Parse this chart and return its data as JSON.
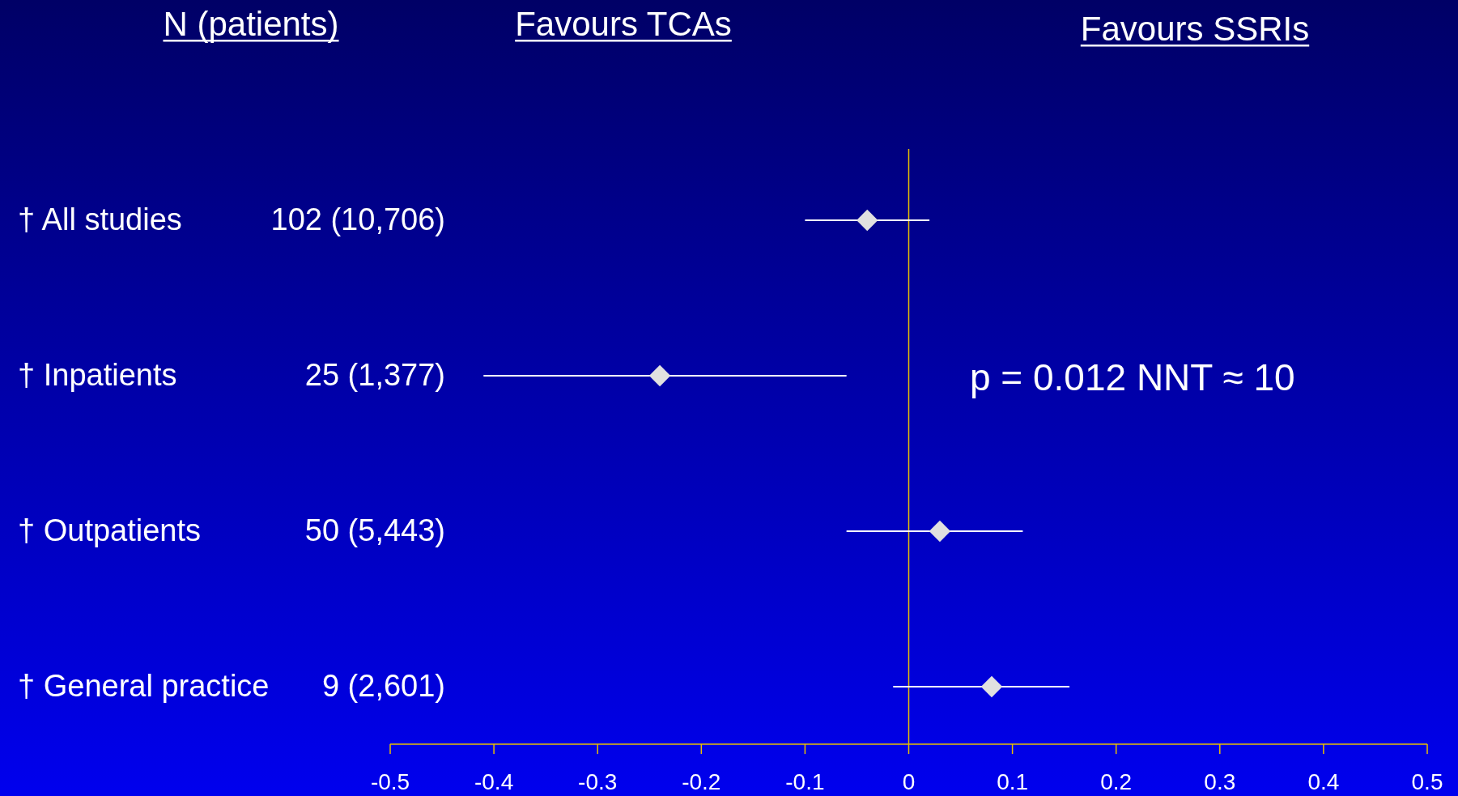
{
  "chart_data": {
    "type": "scatter",
    "orientation": "horizontal",
    "categories": [
      "† All studies",
      "† Inpatients",
      "† Outpatients",
      "† General practice"
    ],
    "values": [
      -0.04,
      -0.24,
      0.03,
      0.08
    ],
    "errors": [
      [
        -0.1,
        0.02
      ],
      [
        -0.41,
        -0.06
      ],
      [
        -0.06,
        0.11
      ],
      [
        -0.015,
        0.155
      ]
    ],
    "color": "#e0e0e0",
    "marker": "diamond",
    "xlim": [
      -0.5,
      0.5
    ],
    "xticks": [
      -0.5,
      -0.4,
      -0.3,
      -0.2,
      -0.1,
      0,
      0.1,
      0.2,
      0.3,
      0.4,
      0.5
    ],
    "ref_lines": [
      {
        "axis": "x",
        "value": 0,
        "color": "#e8c000"
      }
    ],
    "grid": false,
    "annotations": [
      "N (patients)",
      "Favours TCAs",
      "Favours SSRIs",
      "p = 0.012  NNT ≈ 10",
      "102 (10,706)",
      "25 (1,377)",
      "50 (5,443)",
      "9 (2,601)"
    ]
  }
}
